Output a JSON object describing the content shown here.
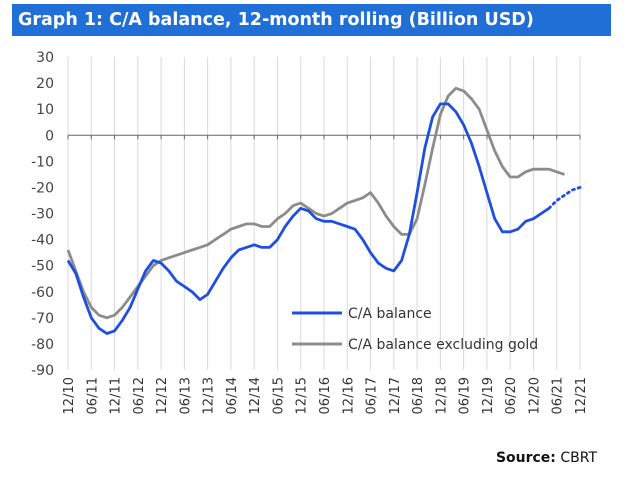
{
  "header": {
    "title": "Graph 1: C/A balance, 12-month rolling (Billion USD)"
  },
  "footer": {
    "source_label": "Source:",
    "source_value": "CBRT"
  },
  "colors": {
    "title_bg": "#1f6fd6",
    "series_1": "#1f4fe0",
    "series_2": "#8c8c8c"
  },
  "chart_data": {
    "type": "line",
    "title": "Graph 1: C/A balance, 12-month rolling (Billion USD)",
    "xlabel": "",
    "ylabel": "",
    "ylim": [
      -90,
      30
    ],
    "yticks": [
      30,
      20,
      10,
      0,
      -10,
      -20,
      -30,
      -40,
      -50,
      -60,
      -70,
      -80,
      -90
    ],
    "xlim": [
      "2010-12",
      "2021-12"
    ],
    "xticks": [
      "12/10",
      "06/11",
      "12/11",
      "06/12",
      "12/12",
      "06/13",
      "12/13",
      "06/14",
      "12/14",
      "06/15",
      "12/15",
      "06/16",
      "12/16",
      "06/17",
      "12/17",
      "06/18",
      "12/18",
      "06/19",
      "12/19",
      "06/20",
      "12/20",
      "06/21",
      "12/21"
    ],
    "grid": "vertical",
    "legend_position": "bottom-right inside",
    "series": [
      {
        "name": "C/A balance",
        "x": [
          "2010-12",
          "2011-02",
          "2011-04",
          "2011-06",
          "2011-08",
          "2011-10",
          "2011-12",
          "2012-02",
          "2012-04",
          "2012-06",
          "2012-08",
          "2012-10",
          "2012-12",
          "2013-02",
          "2013-04",
          "2013-06",
          "2013-08",
          "2013-10",
          "2013-12",
          "2014-02",
          "2014-04",
          "2014-06",
          "2014-08",
          "2014-10",
          "2014-12",
          "2015-02",
          "2015-04",
          "2015-06",
          "2015-08",
          "2015-10",
          "2015-12",
          "2016-02",
          "2016-04",
          "2016-06",
          "2016-08",
          "2016-10",
          "2016-12",
          "2017-02",
          "2017-04",
          "2017-06",
          "2017-08",
          "2017-10",
          "2017-12",
          "2018-02",
          "2018-04",
          "2018-06",
          "2018-08",
          "2018-10",
          "2018-12",
          "2019-02",
          "2019-04",
          "2019-06",
          "2019-08",
          "2019-10",
          "2019-12",
          "2020-02",
          "2020-04",
          "2020-06",
          "2020-08",
          "2020-10",
          "2020-12",
          "2021-02",
          "2021-04"
        ],
        "values": [
          -48,
          -53,
          -62,
          -70,
          -74,
          -76,
          -75,
          -71,
          -66,
          -59,
          -52,
          -48,
          -49,
          -52,
          -56,
          -58,
          -60,
          -63,
          -61,
          -56,
          -51,
          -47,
          -44,
          -43,
          -42,
          -43,
          -43,
          -40,
          -35,
          -31,
          -28,
          -29,
          -32,
          -33,
          -33,
          -34,
          -35,
          -36,
          -40,
          -45,
          -49,
          -51,
          -52,
          -48,
          -38,
          -22,
          -5,
          7,
          12,
          12,
          9,
          4,
          -3,
          -12,
          -22,
          -32,
          -37,
          -37,
          -36,
          -33,
          -32,
          -30,
          -28
        ],
        "projected_x": [
          "2021-04",
          "2021-06",
          "2021-08",
          "2021-10",
          "2021-12"
        ],
        "projected_values": [
          -28,
          -25,
          -23,
          -21,
          -20
        ]
      },
      {
        "name": "C/A balance excluding gold",
        "x": [
          "2010-12",
          "2011-02",
          "2011-04",
          "2011-06",
          "2011-08",
          "2011-10",
          "2011-12",
          "2012-02",
          "2012-04",
          "2012-06",
          "2012-08",
          "2012-10",
          "2012-12",
          "2013-02",
          "2013-04",
          "2013-06",
          "2013-08",
          "2013-10",
          "2013-12",
          "2014-02",
          "2014-04",
          "2014-06",
          "2014-08",
          "2014-10",
          "2014-12",
          "2015-02",
          "2015-04",
          "2015-06",
          "2015-08",
          "2015-10",
          "2015-12",
          "2016-02",
          "2016-04",
          "2016-06",
          "2016-08",
          "2016-10",
          "2016-12",
          "2017-02",
          "2017-04",
          "2017-06",
          "2017-08",
          "2017-10",
          "2017-12",
          "2018-02",
          "2018-04",
          "2018-06",
          "2018-08",
          "2018-10",
          "2018-12",
          "2019-02",
          "2019-04",
          "2019-06",
          "2019-08",
          "2019-10",
          "2019-12",
          "2020-02",
          "2020-04",
          "2020-06",
          "2020-08",
          "2020-10",
          "2020-12",
          "2021-02",
          "2021-04",
          "2021-06",
          "2021-08"
        ],
        "values": [
          -44,
          -52,
          -60,
          -66,
          -69,
          -70,
          -69,
          -66,
          -62,
          -58,
          -54,
          -50,
          -48,
          -47,
          -46,
          -45,
          -44,
          -43,
          -42,
          -40,
          -38,
          -36,
          -35,
          -34,
          -34,
          -35,
          -35,
          -32,
          -30,
          -27,
          -26,
          -28,
          -30,
          -31,
          -30,
          -28,
          -26,
          -25,
          -24,
          -22,
          -26,
          -31,
          -35,
          -38,
          -38,
          -32,
          -19,
          -5,
          8,
          15,
          18,
          17,
          14,
          10,
          2,
          -6,
          -12,
          -16,
          -16,
          -14,
          -13,
          -13,
          -13,
          -14,
          -15
        ]
      }
    ]
  }
}
